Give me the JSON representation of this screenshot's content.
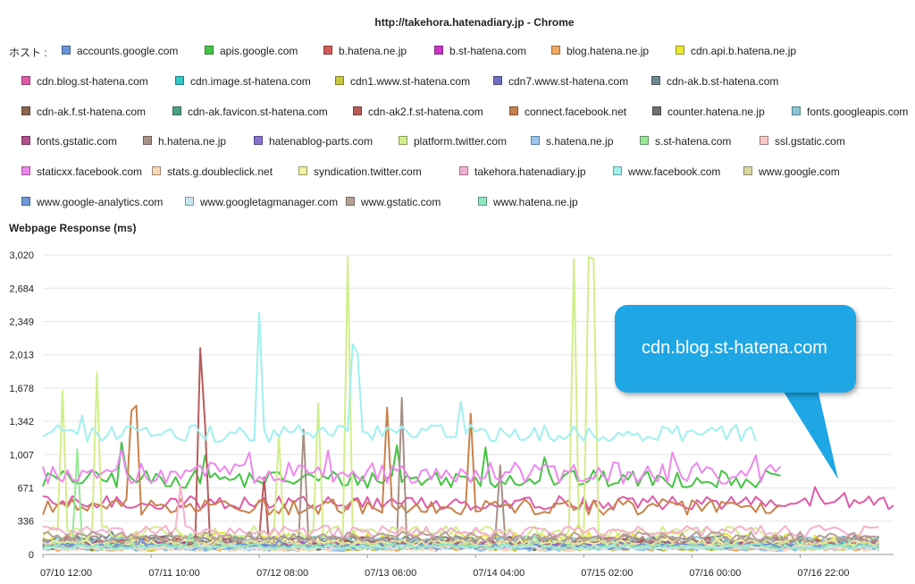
{
  "window_title": "http://takehora.hatenadiary.jp - Chrome",
  "host_label": "ホスト :",
  "callout_text": "cdn.blog.st-hatena.com",
  "callout_color": "#1ea6e5",
  "chart_data": {
    "type": "line",
    "title": "Webpage Response (ms)",
    "xlabel": "",
    "ylabel": "Webpage Response (ms)",
    "ylim": [
      0,
      3020
    ],
    "yticks": [
      "0",
      "336",
      "671",
      "1,007",
      "1,342",
      "1,678",
      "2,013",
      "2,349",
      "2,684",
      "3,020"
    ],
    "ytick_values": [
      0,
      336,
      671,
      1007,
      1342,
      1678,
      2013,
      2349,
      2684,
      3020
    ],
    "xticks": [
      "07/10 12:00",
      "07/11 10:00",
      "07/12 08:00",
      "07/13 06:00",
      "07/14 04:00",
      "07/15 02:00",
      "07/16 00:00",
      "07/16 22:00"
    ],
    "xlim_hours": [
      0,
      173
    ],
    "xtick_hours": [
      0,
      22,
      44,
      66,
      88,
      110,
      132,
      154
    ],
    "grid": true,
    "legend_position": "top",
    "series": [
      {
        "name": "accounts.google.com",
        "color": "#6a96d8",
        "base": 80,
        "noise": 30,
        "spikes": [
          [
            60,
            140
          ],
          [
            120,
            150
          ]
        ]
      },
      {
        "name": "apis.google.com",
        "color": "#44c444",
        "base": 760,
        "noise": 90,
        "end": 150,
        "after": 180,
        "spikes": [
          [
            16,
            1130
          ],
          [
            33,
            1000
          ],
          [
            72,
            1100
          ],
          [
            90,
            1080
          ],
          [
            102,
            980
          ]
        ]
      },
      {
        "name": "b.hatena.ne.jp",
        "color": "#d45a5a",
        "base": 120,
        "noise": 30
      },
      {
        "name": "b.st-hatena.com",
        "color": "#c838c8",
        "base": 90,
        "noise": 30
      },
      {
        "name": "blog.hatena.ne.jp",
        "color": "#f0a860",
        "base": 60,
        "noise": 25
      },
      {
        "name": "cdn.api.b.hatena.ne.jp",
        "color": "#e8e830",
        "base": 160,
        "noise": 60,
        "spikes": [
          [
            109,
            310
          ],
          [
            111,
            230
          ]
        ]
      },
      {
        "name": "cdn.blog.st-hatena.com",
        "color": "#e05aa8",
        "base": 520,
        "noise": 70,
        "end": 173,
        "spikes": [
          [
            157,
            680
          ],
          [
            163,
            620
          ]
        ]
      },
      {
        "name": "cdn.image.st-hatena.com",
        "color": "#30c8c8",
        "base": 100,
        "noise": 40,
        "spikes": [
          [
            35,
            140
          ],
          [
            80,
            120
          ]
        ]
      },
      {
        "name": "cdn1.www.st-hatena.com",
        "color": "#c8c83c",
        "base": 60,
        "noise": 25
      },
      {
        "name": "cdn7.www.st-hatena.com",
        "color": "#7070c0",
        "base": 90,
        "noise": 30
      },
      {
        "name": "cdn-ak.b.st-hatena.com",
        "color": "#708890",
        "base": 150,
        "noise": 40,
        "spikes": [
          [
            14,
            230
          ],
          [
            23,
            180
          ]
        ]
      },
      {
        "name": "cdn-ak.f.st-hatena.com",
        "color": "#8a6450",
        "base": 110,
        "noise": 40
      },
      {
        "name": "cdn-ak.favicon.st-hatena.com",
        "color": "#50a080",
        "base": 80,
        "noise": 30
      },
      {
        "name": "cdn-ak2.f.st-hatena.com",
        "color": "#b85c5c",
        "base": 130,
        "noise": 50,
        "spikes": [
          [
            32,
            2080
          ],
          [
            33,
            1300
          ],
          [
            45,
            780
          ]
        ]
      },
      {
        "name": "connect.facebook.net",
        "color": "#c8824c",
        "base": 480,
        "noise": 80,
        "end": 150,
        "spikes": [
          [
            18,
            1450
          ],
          [
            19,
            1500
          ],
          [
            87,
            1420
          ],
          [
            70,
            1480
          ]
        ]
      },
      {
        "name": "counter.hatena.ne.jp",
        "color": "#707070",
        "base": 70,
        "noise": 25
      },
      {
        "name": "fonts.googleapis.com",
        "color": "#88c8d8",
        "base": 140,
        "noise": 40
      },
      {
        "name": "fonts.gstatic.com",
        "color": "#b0508c",
        "base": 100,
        "noise": 35
      },
      {
        "name": "h.hatena.ne.jp",
        "color": "#a89088",
        "base": 150,
        "noise": 40,
        "spikes": [
          [
            53,
            1260
          ],
          [
            73,
            1580
          ],
          [
            93,
            900
          ]
        ]
      },
      {
        "name": "hatenablog-parts.com",
        "color": "#8870d0",
        "base": 90,
        "noise": 30
      },
      {
        "name": "platform.twitter.com",
        "color": "#d2ee8a",
        "base": 220,
        "noise": 70,
        "end": 150,
        "spikes": [
          [
            4,
            1650
          ],
          [
            11,
            1830
          ],
          [
            48,
            1200
          ],
          [
            56,
            1520
          ],
          [
            62,
            3000
          ],
          [
            108,
            2980
          ],
          [
            111,
            3000
          ],
          [
            112,
            2980
          ]
        ]
      },
      {
        "name": "s.hatena.ne.jp",
        "color": "#98c4f0",
        "base": 60,
        "noise": 25
      },
      {
        "name": "s.st-hatena.com",
        "color": "#98e898",
        "base": 90,
        "noise": 30,
        "spikes": [
          [
            7,
            1060
          ]
        ]
      },
      {
        "name": "ssl.gstatic.com",
        "color": "#f8c8c8",
        "base": 70,
        "noise": 25
      },
      {
        "name": "staticxx.facebook.com",
        "color": "#ee88ee",
        "base": 820,
        "noise": 110,
        "end": 150,
        "spikes": [
          [
            16,
            1060
          ],
          [
            42,
            1030
          ],
          [
            58,
            1050
          ],
          [
            128,
            1030
          ],
          [
            145,
            1000
          ]
        ]
      },
      {
        "name": "stats.g.doubleclick.net",
        "color": "#f8d8b8",
        "base": 60,
        "noise": 25
      },
      {
        "name": "syndication.twitter.com",
        "color": "#f0f0a0",
        "base": 120,
        "noise": 40
      },
      {
        "name": "takehora.hatenadiary.jp",
        "color": "#f4b0d0",
        "base": 230,
        "noise": 60,
        "spikes": [
          [
            28,
            700
          ]
        ]
      },
      {
        "name": "www.facebook.com",
        "color": "#a0f0f0",
        "base": 1220,
        "noise": 90,
        "end": 145,
        "spikes": [
          [
            8,
            1400
          ],
          [
            40,
            1280
          ],
          [
            44,
            2440
          ],
          [
            57,
            1280
          ],
          [
            63,
            2120
          ],
          [
            64,
            2030
          ],
          [
            85,
            1540
          ]
        ]
      },
      {
        "name": "www.google.com",
        "color": "#d8d8a0",
        "base": 110,
        "noise": 40
      },
      {
        "name": "www.google-analytics.com",
        "color": "#7098d8",
        "base": 80,
        "noise": 30,
        "spikes": [
          [
            20,
            160
          ],
          [
            48,
            150
          ]
        ]
      },
      {
        "name": "www.googletagmanager.com",
        "color": "#c8e8f0",
        "base": 70,
        "noise": 25
      },
      {
        "name": "www.gstatic.com",
        "color": "#b8a098",
        "base": 180,
        "noise": 50
      },
      {
        "name": "www.hatena.ne.jp",
        "color": "#90e8c0",
        "base": 80,
        "noise": 30,
        "spikes": [
          [
            30,
            210
          ],
          [
            100,
            190
          ]
        ]
      }
    ]
  }
}
